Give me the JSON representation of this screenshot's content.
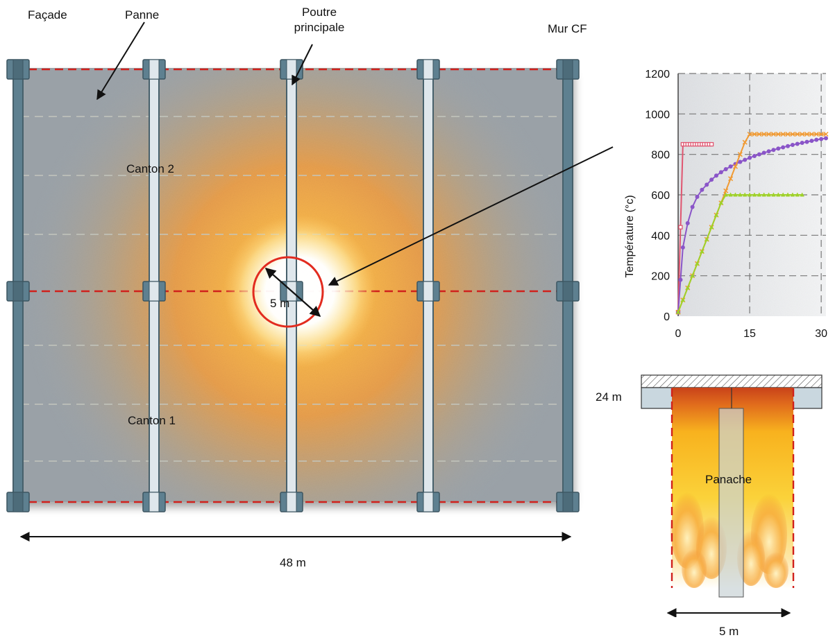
{
  "plan": {
    "labels": {
      "facade": "Façade",
      "panne": "Panne",
      "poutre_line1": "Poutre",
      "poutre_line2": "principale",
      "mur_cf": "Mur CF",
      "canton2": "Canton 2",
      "canton1": "Canton 1",
      "fire_diameter": "5 m",
      "width": "48 m"
    },
    "colors": {
      "slab": "#9aa1a7",
      "column_dark": "#5e8090",
      "column_light": "#dfe7ec",
      "dashed_red": "#d0211c",
      "dashed_gray": "#b9bcb3",
      "fire_core": "#ffffff",
      "fire_orange": "#f3a035",
      "circle": "#e22b1f"
    }
  },
  "panache": {
    "labels": {
      "height": "24 m",
      "title": "Panache",
      "width": "5 m"
    },
    "colors": {
      "hot_top": "#c9421a",
      "flame": "#f7c22a",
      "ceiling_hatch": "#cfd3d6",
      "beam": "#c8d6de"
    }
  },
  "chart_data": {
    "type": "line",
    "title": "",
    "xlabel": "",
    "ylabel": "Température (°c)",
    "xlim": [
      0,
      31
    ],
    "ylim": [
      0,
      1200
    ],
    "yticks": [
      0,
      200,
      400,
      600,
      800,
      1000,
      1200
    ],
    "xticks": [
      0,
      15,
      30
    ],
    "grid": true,
    "series": [
      {
        "color": "#e05570",
        "marker": "square",
        "x": [
          0,
          0.5,
          1,
          1.5,
          2,
          2.5,
          3,
          3.5,
          4,
          4.5,
          5,
          5.5,
          6,
          6.5,
          7
        ],
        "y": [
          20,
          440,
          850,
          850,
          850,
          850,
          850,
          850,
          850,
          850,
          850,
          850,
          850,
          850,
          850
        ]
      },
      {
        "color": "#8a55c8",
        "marker": "circle",
        "x": [
          0,
          0.5,
          1,
          2,
          3,
          4,
          5,
          6,
          7,
          8,
          9,
          10,
          11,
          12,
          13,
          14,
          15,
          16,
          17,
          18,
          19,
          20,
          21,
          22,
          23,
          24,
          25,
          26,
          27,
          28,
          29,
          30,
          31
        ],
        "y": [
          20,
          180,
          340,
          460,
          540,
          590,
          625,
          650,
          675,
          695,
          712,
          727,
          740,
          752,
          763,
          773,
          783,
          792,
          800,
          808,
          815,
          822,
          829,
          835,
          841,
          847,
          852,
          857,
          862,
          867,
          872,
          876,
          880
        ]
      },
      {
        "color": "#f09a33",
        "marker": "cross",
        "x": [
          0,
          1,
          2,
          3,
          4,
          5,
          6,
          7,
          8,
          9,
          10,
          11,
          12,
          13,
          14,
          15,
          16,
          17,
          18,
          19,
          20,
          21,
          22,
          23,
          24,
          25,
          26,
          27,
          28,
          29,
          30,
          31
        ],
        "y": [
          20,
          80,
          140,
          200,
          260,
          320,
          380,
          440,
          500,
          560,
          620,
          680,
          740,
          800,
          860,
          900,
          900,
          900,
          900,
          900,
          900,
          900,
          900,
          900,
          900,
          900,
          900,
          900,
          900,
          900,
          900,
          900
        ]
      },
      {
        "color": "#9fd12a",
        "marker": "triangle",
        "x": [
          0,
          1,
          2,
          3,
          4,
          5,
          6,
          7,
          8,
          9,
          10,
          11,
          12,
          13,
          14,
          15,
          16,
          17,
          18,
          19,
          20,
          21,
          22,
          23,
          24,
          25,
          26
        ],
        "y": [
          20,
          80,
          140,
          200,
          260,
          320,
          380,
          440,
          500,
          560,
          600,
          600,
          600,
          600,
          600,
          600,
          600,
          600,
          600,
          600,
          600,
          600,
          600,
          600,
          600,
          600,
          600
        ]
      }
    ]
  }
}
